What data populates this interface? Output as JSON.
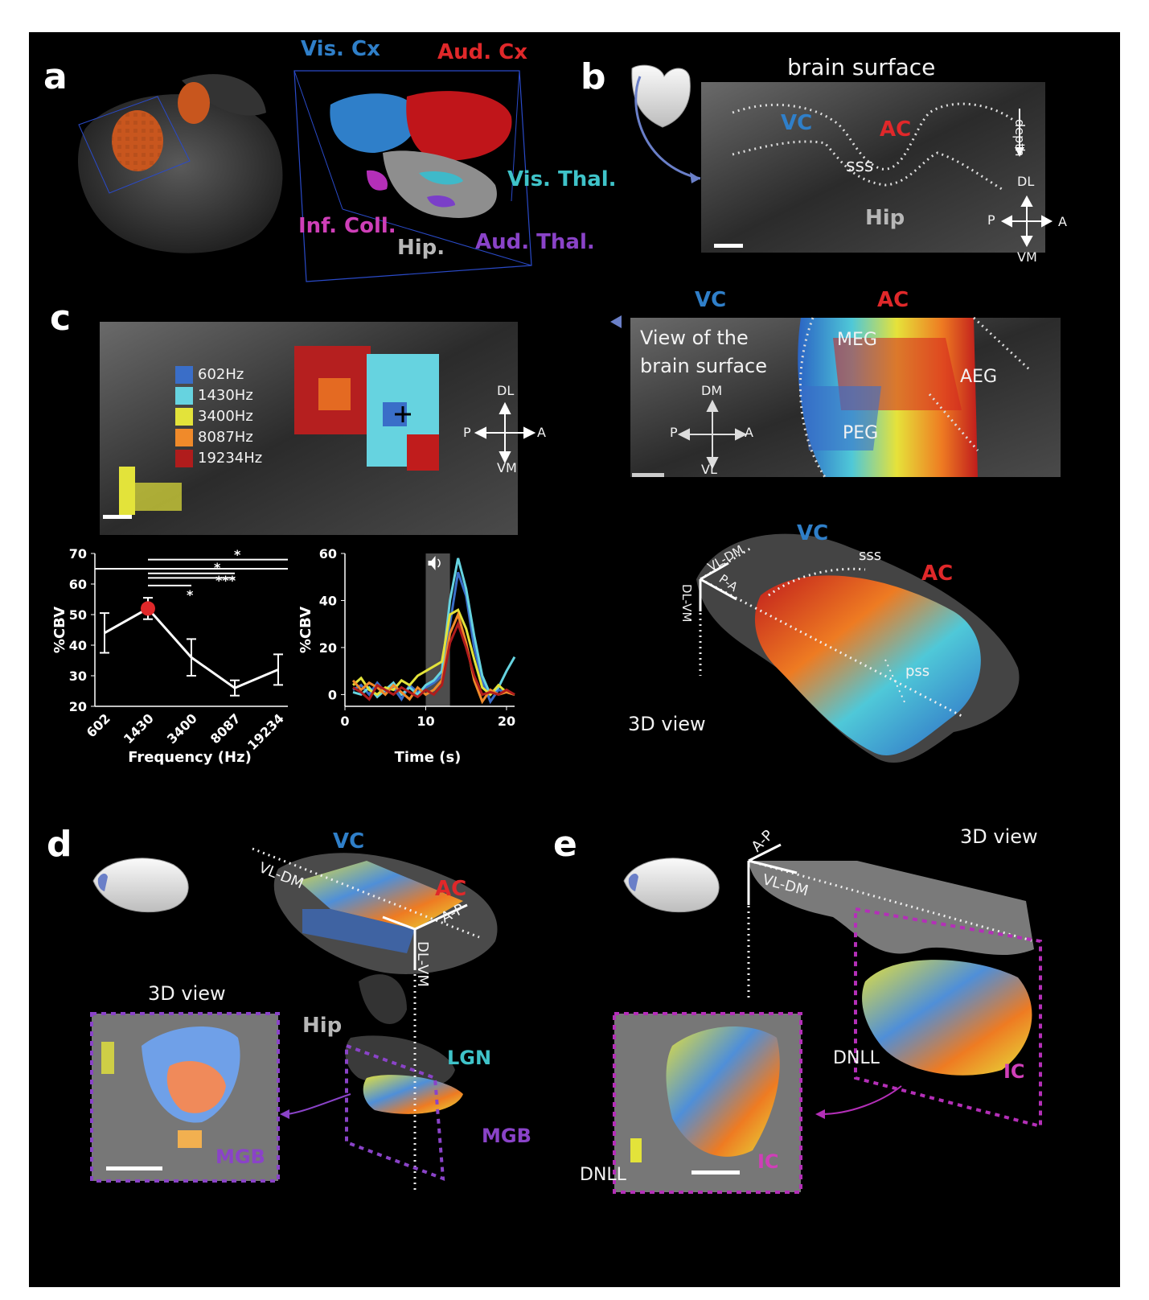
{
  "panels": {
    "a": {
      "letter": "a",
      "labels": {
        "vis_cx": "Vis. Cx",
        "aud_cx": "Aud. Cx",
        "vis_thal": "Vis. Thal.",
        "inf_coll": "Inf. Coll.",
        "hip": "Hip.",
        "aud_thal": "Aud. Thal."
      }
    },
    "b": {
      "letter": "b",
      "title": "brain surface",
      "labels": {
        "vc": "VC",
        "ac": "AC",
        "sss": "sss",
        "hip": "Hip",
        "depth": "depth"
      },
      "compass": {
        "up": "DL",
        "down": "VM",
        "left": "P",
        "right": "A"
      }
    },
    "c": {
      "letter": "c",
      "legend": [
        "602Hz",
        "1430Hz",
        "3400Hz",
        "8087Hz",
        "19234Hz"
      ],
      "legend_colors": [
        "#3a6ec8",
        "#66d3e0",
        "#e3e33a",
        "#f08a2a",
        "#b01c1c"
      ],
      "compass": {
        "up": "DL",
        "down": "VM",
        "left": "P",
        "right": "A"
      },
      "surface": {
        "vc": "VC",
        "ac": "AC",
        "caption_line1": "View of the",
        "caption_line2": "brain surface",
        "meg": "MEG",
        "aeg": "AEG",
        "peg": "PEG",
        "compass": {
          "up": "DM",
          "down": "VL",
          "left": "P",
          "right": "A"
        }
      },
      "view3d": {
        "vc": "VC",
        "sss": "sss",
        "ac": "AC",
        "vl_dm": "VL-DM",
        "p_a": "P-A",
        "dl_vm": "DL-VM",
        "pss": "pss",
        "caption": "3D view"
      }
    },
    "d": {
      "letter": "d",
      "labels": {
        "vc": "VC",
        "ac": "AC",
        "vl_dm": "VL-DM",
        "a_p": "A-P",
        "dl_vm": "DL-VM",
        "view3d": "3D view",
        "hip": "Hip",
        "lgn": "LGN",
        "mgb": "MGB",
        "mgb_inset": "MGB"
      }
    },
    "e": {
      "letter": "e",
      "labels": {
        "view3d": "3D view",
        "a_p": "A-P",
        "vl_dm": "VL-DM",
        "dnll": "DNLL",
        "ic": "IC",
        "dnll_inset": "DNLL",
        "ic_inset": "IC"
      }
    }
  },
  "chart_data": [
    {
      "type": "line",
      "categories": [
        "602",
        "1430",
        "3400",
        "8087",
        "19234"
      ],
      "values": [
        44,
        52,
        36,
        26,
        32
      ],
      "error": [
        6.5,
        3.5,
        6,
        2.5,
        5
      ],
      "highlight_index": 1,
      "highlight_color": "#e0282a",
      "xlabel": "Frequency (Hz)",
      "ylabel": "%CBV",
      "ylim": [
        20,
        70
      ],
      "yticks": [
        20,
        30,
        40,
        50,
        60,
        70
      ],
      "significance": [
        "*",
        "*",
        "***",
        "*"
      ]
    },
    {
      "type": "line",
      "xlabel": "Time (s)",
      "ylabel": "%CBV",
      "xlim": [
        0,
        21
      ],
      "ylim": [
        -5,
        60
      ],
      "xticks": [
        0,
        10,
        20
      ],
      "yticks": [
        0,
        20,
        40,
        60
      ],
      "stimulus": [
        10,
        13
      ],
      "x": [
        1,
        2,
        3,
        4,
        5,
        6,
        7,
        8,
        9,
        10,
        11,
        12,
        13,
        14,
        15,
        16,
        17,
        18,
        19,
        20,
        21
      ],
      "series": [
        {
          "color": "#3a6ec8",
          "values": [
            2,
            4,
            0,
            5,
            1,
            3,
            -2,
            4,
            1,
            3,
            5,
            8,
            30,
            52,
            42,
            20,
            6,
            -3,
            2,
            1,
            0
          ]
        },
        {
          "color": "#66d3e0",
          "values": [
            1,
            0,
            3,
            -1,
            2,
            5,
            0,
            3,
            0,
            4,
            6,
            10,
            40,
            58,
            45,
            25,
            8,
            0,
            3,
            10,
            16
          ]
        },
        {
          "color": "#e3e33a",
          "values": [
            4,
            7,
            2,
            0,
            3,
            2,
            6,
            4,
            8,
            10,
            12,
            14,
            34,
            36,
            28,
            15,
            3,
            0,
            4,
            1,
            0
          ]
        },
        {
          "color": "#f08a2a",
          "values": [
            6,
            2,
            5,
            3,
            0,
            4,
            1,
            -2,
            3,
            0,
            2,
            6,
            26,
            34,
            22,
            6,
            -3,
            2,
            0,
            1,
            0
          ]
        },
        {
          "color": "#b01c1c",
          "values": [
            3,
            1,
            -2,
            4,
            2,
            0,
            3,
            1,
            -1,
            2,
            0,
            4,
            22,
            30,
            20,
            8,
            0,
            1,
            0,
            2,
            0
          ]
        }
      ]
    }
  ]
}
